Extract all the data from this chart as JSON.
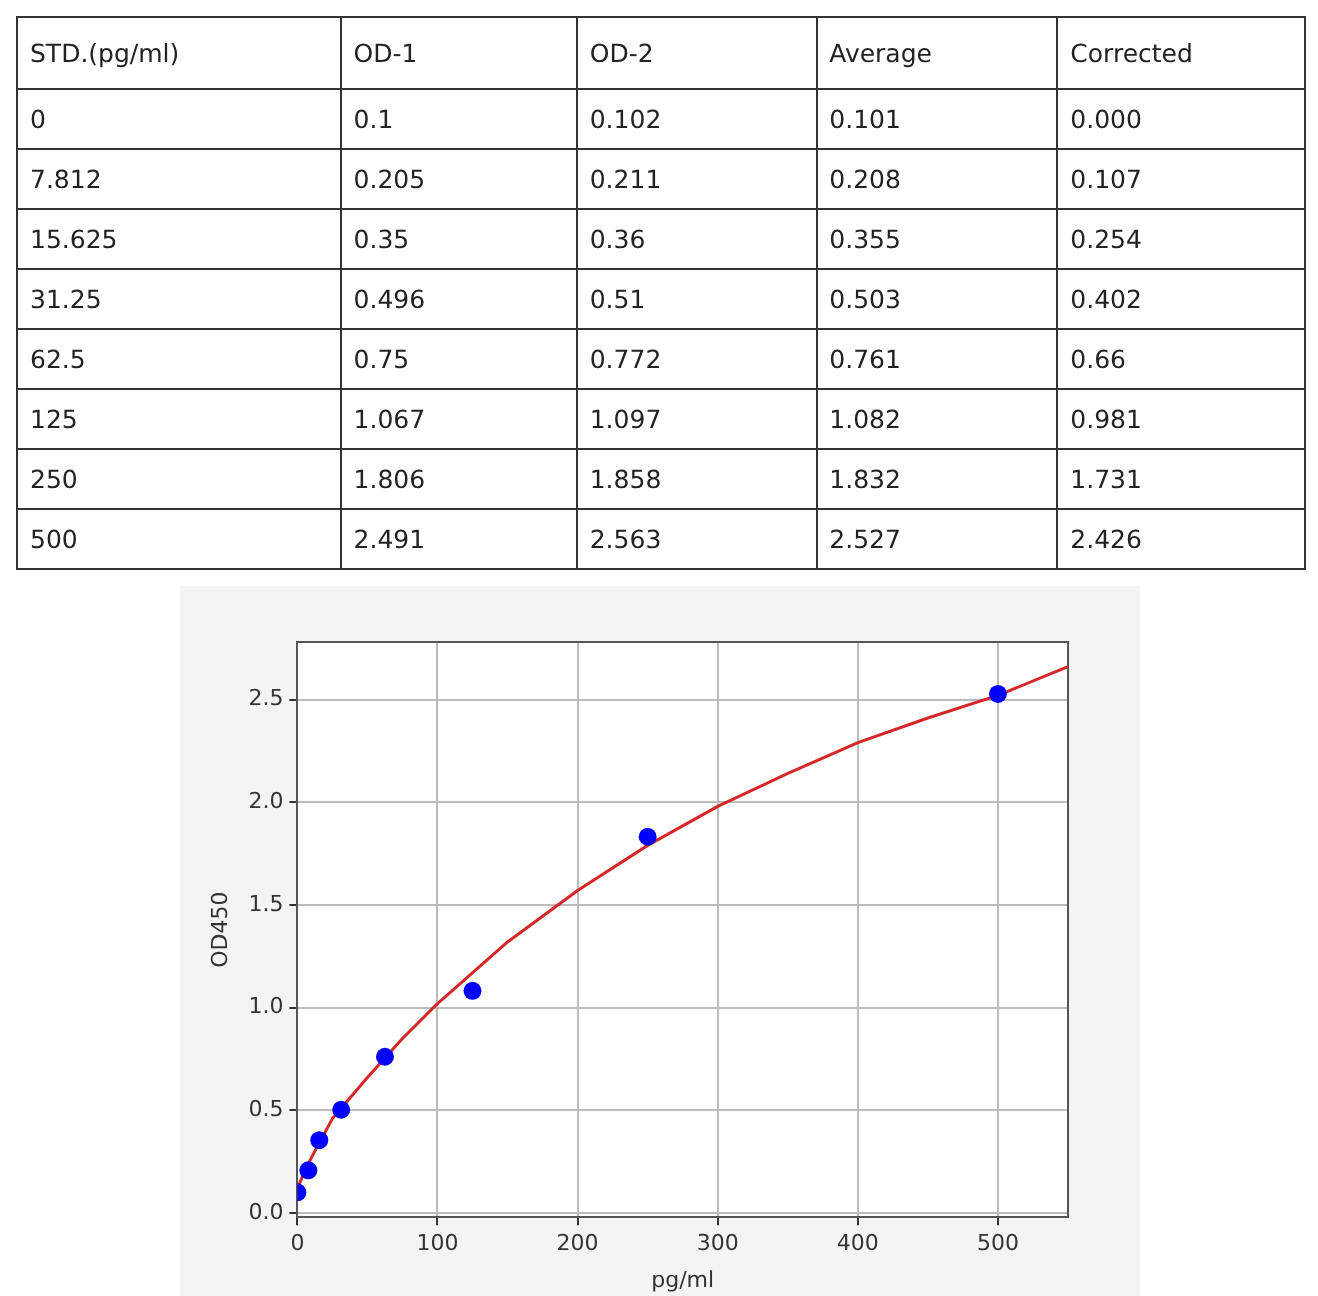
{
  "chart_data": [
    {
      "type": "other",
      "annotations": [
        "STD.(pg/ml)",
        "OD-1",
        "OD-2",
        "Average",
        "Corrected",
        "0",
        "0.1",
        "0.102",
        "0.101",
        "0.000",
        "7.812",
        "0.205",
        "0.211",
        "0.208",
        "0.107",
        "15.625",
        "0.35",
        "0.36",
        "0.355",
        "0.254",
        "31.25",
        "0.496",
        "0.51",
        "0.503",
        "0.402",
        "62.5",
        "0.75",
        "0.772",
        "0.761",
        "0.66",
        "125",
        "1.067",
        "1.097",
        "1.082",
        "0.981",
        "250",
        "1.806",
        "1.858",
        "1.832",
        "1.731",
        "500",
        "2.491",
        "2.563",
        "2.527",
        "2.426"
      ]
    },
    {
      "type": "scatter",
      "xlabel": "pg/ml",
      "ylabel": "OD450",
      "xlim": [
        0,
        550
      ],
      "ylim": [
        -0.02,
        2.78
      ],
      "xticks": [
        0,
        100,
        200,
        300,
        400,
        500
      ],
      "yticks": [
        {
          "value": 0,
          "label": "0.0"
        },
        0.5,
        {
          "value": 1,
          "label": "1.0"
        },
        1.5,
        {
          "value": 2,
          "label": "2.0"
        },
        2.5
      ],
      "grid": true,
      "legend": false,
      "series": [
        {
          "type": "line",
          "color": "#d62728",
          "marker": "none",
          "x": [
            0,
            5,
            10,
            25,
            50,
            75,
            100,
            150,
            200,
            250,
            300,
            350,
            400,
            450,
            500,
            550
          ],
          "values": [
            0.12,
            0.2,
            0.27,
            0.46,
            0.66,
            0.85,
            1.02,
            1.32,
            1.57,
            1.79,
            1.98,
            2.14,
            2.29,
            2.41,
            2.52,
            2.66
          ]
        },
        {
          "type": "scatter",
          "color": "#0000ff",
          "marker": "circle",
          "x": [
            0,
            7.812,
            15.625,
            31.25,
            62.5,
            125,
            250,
            500
          ],
          "values": [
            0.101,
            0.208,
            0.355,
            0.503,
            0.761,
            1.082,
            1.832,
            2.527
          ]
        }
      ]
    }
  ]
}
